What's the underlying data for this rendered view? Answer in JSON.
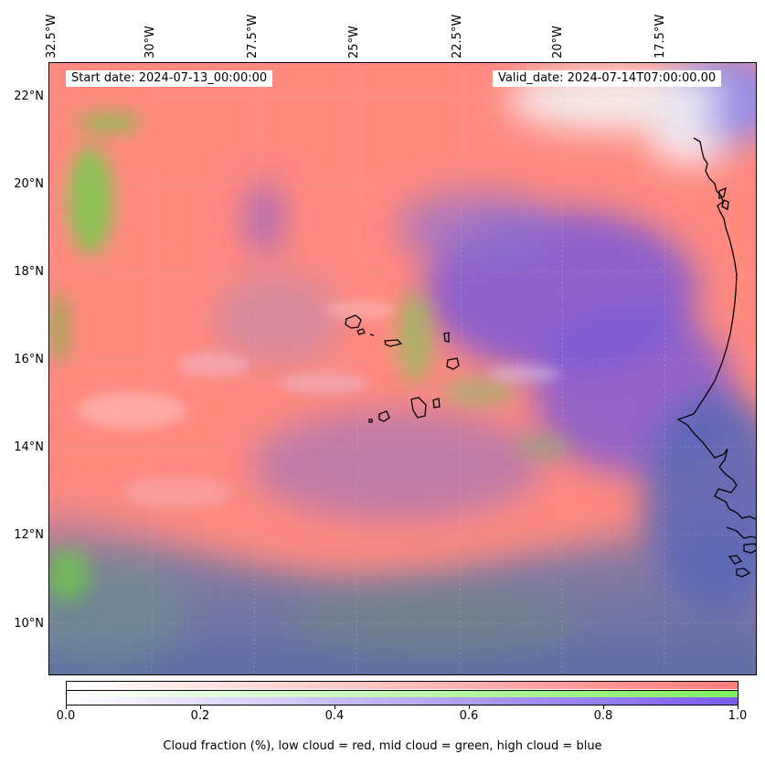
{
  "map": {
    "start_date_label": "Start date: 2024-07-13_00:00:00",
    "valid_date_label": "Valid_date: 2024-07-14T07:00:00.00",
    "longitude_ticks": [
      "32.5°W",
      "30°W",
      "27.5°W",
      "25°W",
      "22.5°W",
      "20°W",
      "17.5°W"
    ],
    "latitude_ticks": [
      "22°N",
      "20°N",
      "18°N",
      "16°N",
      "14°N",
      "12°N",
      "10°N"
    ],
    "colors": {
      "low_cloud": "#ff8080",
      "mid_cloud": "#80e860",
      "high_cloud": "#8060e0",
      "sea": "#4a6aa8",
      "coastline": "#000000"
    }
  },
  "colorbar": {
    "ticks": [
      "0.0",
      "0.2",
      "0.4",
      "0.6",
      "0.8",
      "1.0"
    ],
    "label": "Cloud fraction (%), low cloud = red, mid cloud = green, high cloud = blue",
    "rows": [
      {
        "name": "low",
        "from": "#ffffff",
        "to": "#ff7b7b"
      },
      {
        "name": "mid",
        "from": "#ffffff",
        "to": "#80ee60"
      },
      {
        "name": "high",
        "from": "#ffffff",
        "to": "#7a5cf0"
      }
    ]
  }
}
